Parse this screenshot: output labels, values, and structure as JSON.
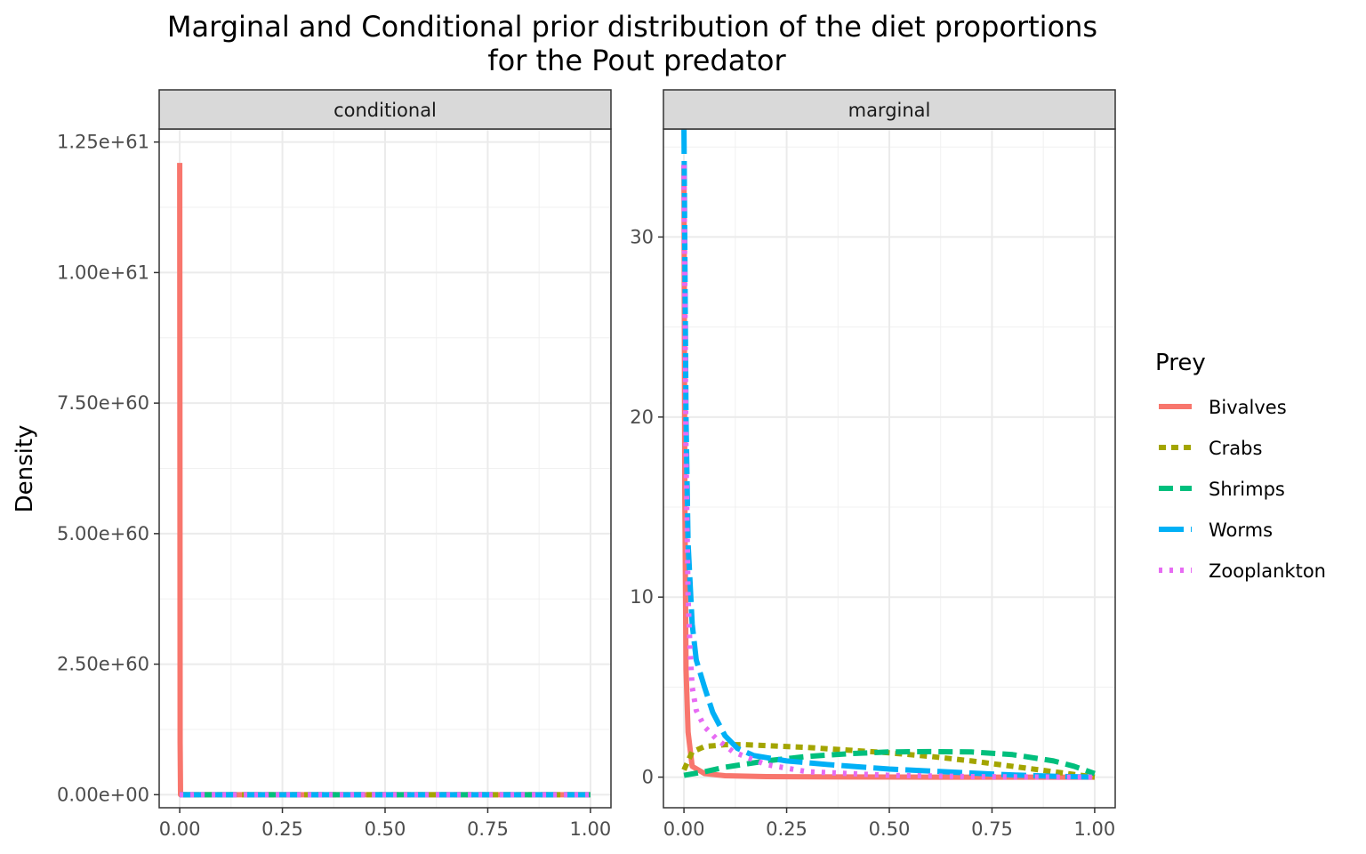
{
  "chart_data": {
    "type": "line",
    "title_lines": [
      "Marginal and Conditional prior distribution of the diet proportions",
      "for the Pout predator"
    ],
    "ylabel": "Density",
    "xlabel": "",
    "legend": {
      "title": "Prey",
      "placement": "right",
      "entries": [
        {
          "name": "Bivalves",
          "color": "#F8766D",
          "dash": "solid"
        },
        {
          "name": "Crabs",
          "color": "#A3A500",
          "dash": "dotted-short"
        },
        {
          "name": "Shrimps",
          "color": "#00BF7D",
          "dash": "dashed"
        },
        {
          "name": "Worms",
          "color": "#00B0F6",
          "dash": "longdash"
        },
        {
          "name": "Zooplankton",
          "color": "#E76BF3",
          "dash": "dotted"
        }
      ]
    },
    "grid": true,
    "panels": [
      {
        "strip": "conditional",
        "xlim": [
          -0.05,
          1.05
        ],
        "ylim": [
          -2.5e+59,
          1.275e+61
        ],
        "xticks": [
          0,
          0.25,
          0.5,
          0.75,
          1
        ],
        "xtick_labels": [
          "0.00",
          "0.25",
          "0.50",
          "0.75",
          "1.00"
        ],
        "yticks": [
          0,
          2.5e+60,
          5e+60,
          7.5e+60,
          1e+61,
          1.25e+61
        ],
        "ytick_labels": [
          "0.00e+00",
          "2.50e+60",
          "5.00e+60",
          "7.50e+60",
          "1.00e+61",
          "1.25e+61"
        ],
        "series": [
          {
            "name": "Bivalves",
            "x": [
              0.0,
              0.001,
              0.002,
              0.01,
              0.25,
              0.5,
              0.75,
              1.0
            ],
            "y": [
              1.21e+61,
              1e+60,
              0,
              0,
              0,
              0,
              0,
              0
            ]
          },
          {
            "name": "Crabs",
            "x": [
              0.0,
              0.25,
              0.5,
              0.75,
              1.0
            ],
            "y": [
              0,
              0,
              0,
              0,
              0
            ]
          },
          {
            "name": "Shrimps",
            "x": [
              0.0,
              0.25,
              0.5,
              0.75,
              1.0
            ],
            "y": [
              0,
              0,
              0,
              0,
              0
            ]
          },
          {
            "name": "Worms",
            "x": [
              0.0,
              0.25,
              0.5,
              0.75,
              1.0
            ],
            "y": [
              0,
              0,
              0,
              0,
              0
            ]
          },
          {
            "name": "Zooplankton",
            "x": [
              0.0,
              0.25,
              0.5,
              0.75,
              1.0
            ],
            "y": [
              0,
              0,
              0,
              0,
              0
            ]
          }
        ]
      },
      {
        "strip": "marginal",
        "xlim": [
          -0.05,
          1.05
        ],
        "ylim": [
          -1.7,
          36
        ],
        "xticks": [
          0,
          0.25,
          0.5,
          0.75,
          1
        ],
        "xtick_labels": [
          "0.00",
          "0.25",
          "0.50",
          "0.75",
          "1.00"
        ],
        "yticks": [
          0,
          10,
          20,
          30
        ],
        "ytick_labels": [
          "0",
          "10",
          "20",
          "30"
        ],
        "series": [
          {
            "name": "Bivalves",
            "x": [
              0.0,
              0.002,
              0.005,
              0.01,
              0.02,
              0.05,
              0.1,
              0.2,
              0.4,
              0.6,
              0.8,
              1.0
            ],
            "y": [
              34,
              16,
              6,
              2.5,
              0.6,
              0.2,
              0.08,
              0.03,
              0.01,
              0.0,
              0.0,
              0.0
            ]
          },
          {
            "name": "Crabs",
            "x": [
              0.0,
              0.02,
              0.05,
              0.1,
              0.15,
              0.2,
              0.3,
              0.4,
              0.5,
              0.6,
              0.7,
              0.8,
              0.9,
              0.95,
              1.0
            ],
            "y": [
              0.4,
              1.4,
              1.7,
              1.8,
              1.8,
              1.75,
              1.65,
              1.5,
              1.35,
              1.15,
              0.9,
              0.6,
              0.3,
              0.15,
              0.0
            ]
          },
          {
            "name": "Shrimps",
            "x": [
              0.0,
              0.05,
              0.1,
              0.2,
              0.3,
              0.4,
              0.5,
              0.6,
              0.7,
              0.8,
              0.9,
              0.95,
              1.0
            ],
            "y": [
              0.1,
              0.3,
              0.55,
              0.9,
              1.15,
              1.3,
              1.4,
              1.42,
              1.4,
              1.25,
              0.9,
              0.6,
              0.2
            ]
          },
          {
            "name": "Worms",
            "x": [
              0.0,
              0.005,
              0.01,
              0.02,
              0.03,
              0.05,
              0.07,
              0.1,
              0.13,
              0.17,
              0.25,
              0.35,
              0.5,
              0.65,
              0.8,
              0.9,
              1.0
            ],
            "y": [
              36,
              20,
              13,
              8.5,
              6.5,
              5,
              3.6,
              2.3,
              1.6,
              1.2,
              0.9,
              0.7,
              0.45,
              0.28,
              0.12,
              0.05,
              0.0
            ]
          },
          {
            "name": "Zooplankton",
            "x": [
              0.0,
              0.005,
              0.01,
              0.015,
              0.02,
              0.03,
              0.05,
              0.08,
              0.12,
              0.2,
              0.3,
              0.5,
              0.7,
              0.9,
              1.0
            ],
            "y": [
              34,
              18,
              10,
              7,
              5,
              3.7,
              2.8,
              2.1,
              1.4,
              0.7,
              0.3,
              0.1,
              0.03,
              0.0,
              0.0
            ]
          }
        ]
      }
    ]
  }
}
